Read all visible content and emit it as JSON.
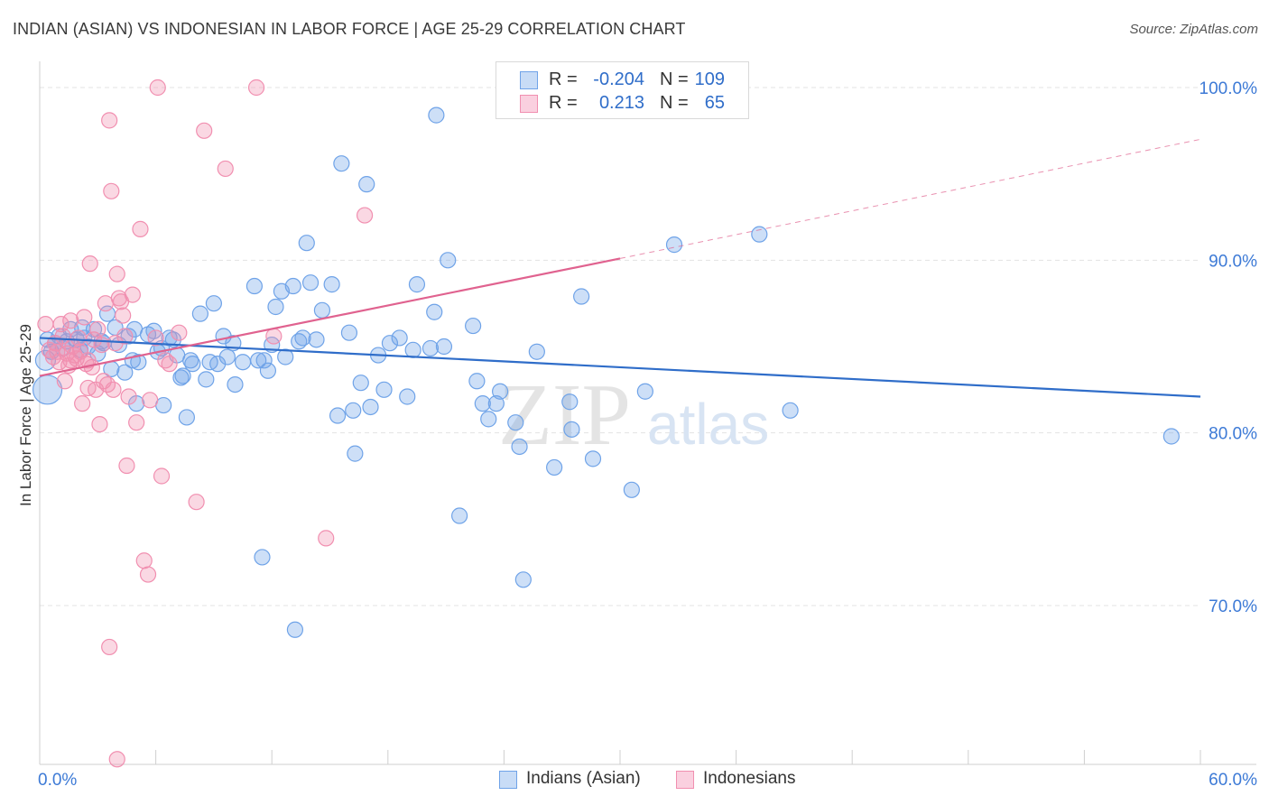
{
  "title": "INDIAN (ASIAN) VS INDONESIAN IN LABOR FORCE | AGE 25-29 CORRELATION CHART",
  "source": "Source: ZipAtlas.com",
  "watermark": {
    "zip": "ZIP",
    "atlas": "atlas"
  },
  "legend": {
    "rows": [
      {
        "r_label": "R =",
        "r_value": "-0.204",
        "n_label": "N =",
        "n_value": "109",
        "color": "#6fa3e8"
      },
      {
        "r_label": "R =",
        "r_value": "0.213",
        "n_label": "N =",
        "n_value": "65",
        "color": "#f18fb0"
      }
    ]
  },
  "bottom_legend": [
    {
      "label": "Indians (Asian)",
      "color": "#6fa3e8"
    },
    {
      "label": "Indonesians",
      "color": "#f18fb0"
    }
  ],
  "colors": {
    "blue": "#6fa3e8",
    "blue_line": "#2f6dc9",
    "pink": "#f18fb0",
    "pink_line": "#e0628f",
    "tick_text": "#3d7ad6",
    "grid": "#e3e3e3"
  },
  "chart_data": {
    "type": "scatter",
    "title": "INDIAN (ASIAN) VS INDONESIAN IN LABOR FORCE | AGE 25-29 CORRELATION CHART",
    "xlabel": "",
    "ylabel": "In Labor Force | Age 25-29",
    "xlim": [
      0,
      60
    ],
    "ylim": [
      61,
      102
    ],
    "x_tick_labels": [
      {
        "value": 0,
        "label": "0.0%"
      },
      {
        "value": 60,
        "label": "60.0%"
      }
    ],
    "y_tick_labels": [
      {
        "value": 100,
        "label": "100.0%"
      },
      {
        "value": 90,
        "label": "90.0%"
      },
      {
        "value": 80,
        "label": "80.0%"
      },
      {
        "value": 70,
        "label": "70.0%"
      }
    ],
    "series": [
      {
        "name": "Indians (Asian)",
        "R": -0.204,
        "N": 109,
        "trend": {
          "x": [
            0,
            60
          ],
          "y": [
            85.5,
            82.1
          ]
        },
        "points": [
          [
            0.4,
            85.4
          ],
          [
            0.6,
            84.7
          ],
          [
            0.8,
            85.2
          ],
          [
            1.0,
            85.6
          ],
          [
            1.2,
            84.9
          ],
          [
            1.4,
            85.3
          ],
          [
            1.6,
            86.0
          ],
          [
            1.9,
            85.4
          ],
          [
            2.1,
            84.8
          ],
          [
            2.3,
            85.5
          ],
          [
            2.5,
            85.0
          ],
          [
            2.8,
            86.0
          ],
          [
            3.0,
            84.6
          ],
          [
            3.3,
            85.2
          ],
          [
            3.5,
            86.9
          ],
          [
            3.7,
            83.7
          ],
          [
            3.9,
            86.1
          ],
          [
            4.1,
            85.1
          ],
          [
            4.4,
            83.5
          ],
          [
            4.6,
            85.6
          ],
          [
            4.8,
            84.2
          ],
          [
            5.0,
            81.7
          ],
          [
            5.1,
            84.1
          ],
          [
            5.6,
            85.7
          ],
          [
            5.9,
            85.9
          ],
          [
            6.1,
            84.7
          ],
          [
            6.3,
            84.9
          ],
          [
            6.4,
            81.6
          ],
          [
            6.7,
            85.5
          ],
          [
            6.9,
            85.4
          ],
          [
            7.1,
            84.5
          ],
          [
            7.3,
            83.2
          ],
          [
            7.4,
            83.3
          ],
          [
            7.6,
            80.9
          ],
          [
            7.8,
            84.2
          ],
          [
            7.9,
            84.0
          ],
          [
            8.3,
            86.9
          ],
          [
            8.6,
            83.1
          ],
          [
            8.8,
            84.1
          ],
          [
            9.0,
            87.5
          ],
          [
            9.2,
            84.0
          ],
          [
            9.5,
            85.6
          ],
          [
            9.7,
            84.4
          ],
          [
            10.0,
            85.2
          ],
          [
            10.1,
            82.8
          ],
          [
            10.5,
            84.1
          ],
          [
            11.1,
            88.5
          ],
          [
            11.3,
            84.2
          ],
          [
            11.6,
            84.2
          ],
          [
            11.8,
            83.6
          ],
          [
            12.0,
            85.1
          ],
          [
            12.2,
            87.3
          ],
          [
            12.5,
            88.2
          ],
          [
            12.7,
            84.4
          ],
          [
            13.1,
            88.5
          ],
          [
            13.4,
            85.3
          ],
          [
            13.6,
            85.5
          ],
          [
            13.8,
            91.0
          ],
          [
            14.0,
            88.7
          ],
          [
            14.3,
            85.4
          ],
          [
            14.6,
            87.1
          ],
          [
            15.1,
            88.6
          ],
          [
            15.4,
            81.0
          ],
          [
            15.6,
            95.6
          ],
          [
            16.0,
            85.8
          ],
          [
            16.2,
            81.3
          ],
          [
            16.3,
            78.8
          ],
          [
            16.6,
            82.9
          ],
          [
            16.9,
            94.4
          ],
          [
            17.1,
            81.5
          ],
          [
            17.5,
            84.5
          ],
          [
            17.8,
            82.5
          ],
          [
            18.1,
            85.2
          ],
          [
            18.6,
            85.5
          ],
          [
            19.0,
            82.1
          ],
          [
            19.3,
            84.8
          ],
          [
            19.5,
            88.6
          ],
          [
            20.2,
            84.9
          ],
          [
            20.4,
            87.0
          ],
          [
            20.9,
            85.0
          ],
          [
            20.5,
            98.4
          ],
          [
            21.1,
            90.0
          ],
          [
            21.7,
            75.2
          ],
          [
            22.4,
            86.2
          ],
          [
            22.6,
            83.0
          ],
          [
            22.9,
            81.7
          ],
          [
            23.2,
            80.8
          ],
          [
            23.6,
            81.7
          ],
          [
            23.8,
            82.4
          ],
          [
            24.6,
            80.6
          ],
          [
            24.8,
            79.2
          ],
          [
            25.0,
            71.5
          ],
          [
            25.7,
            84.7
          ],
          [
            26.6,
            78.0
          ],
          [
            27.4,
            81.8
          ],
          [
            27.5,
            80.2
          ],
          [
            28.0,
            87.9
          ],
          [
            28.6,
            78.5
          ],
          [
            30.6,
            76.7
          ],
          [
            31.3,
            82.4
          ],
          [
            32.8,
            90.9
          ],
          [
            37.2,
            91.5
          ],
          [
            38.8,
            81.3
          ],
          [
            58.5,
            79.8
          ],
          [
            11.5,
            72.8
          ],
          [
            13.2,
            68.6
          ],
          [
            4.9,
            86.0
          ],
          [
            2.2,
            86.1
          ],
          [
            3.2,
            85.3
          ]
        ]
      },
      {
        "name": "Indonesians",
        "R": 0.213,
        "N": 65,
        "trend": {
          "x": [
            0,
            30
          ],
          "y": [
            83.3,
            90.1
          ]
        },
        "trend_dashed": {
          "x": [
            30,
            60
          ],
          "y": [
            90.1,
            97.0
          ]
        },
        "points": [
          [
            0.3,
            86.3
          ],
          [
            0.5,
            84.8
          ],
          [
            0.7,
            84.4
          ],
          [
            0.8,
            85.2
          ],
          [
            1.0,
            84.1
          ],
          [
            1.1,
            86.3
          ],
          [
            1.2,
            85.6
          ],
          [
            1.4,
            84.6
          ],
          [
            1.5,
            83.9
          ],
          [
            1.6,
            84.2
          ],
          [
            1.7,
            85.0
          ],
          [
            1.8,
            84.5
          ],
          [
            1.9,
            84.3
          ],
          [
            2.0,
            85.5
          ],
          [
            2.1,
            84.7
          ],
          [
            2.2,
            81.7
          ],
          [
            2.3,
            86.7
          ],
          [
            2.4,
            84.0
          ],
          [
            2.5,
            82.6
          ],
          [
            2.6,
            89.8
          ],
          [
            2.7,
            83.8
          ],
          [
            2.8,
            85.4
          ],
          [
            2.9,
            82.5
          ],
          [
            3.0,
            86.0
          ],
          [
            3.1,
            80.5
          ],
          [
            3.2,
            85.1
          ],
          [
            3.3,
            83.0
          ],
          [
            3.4,
            87.5
          ],
          [
            3.5,
            82.8
          ],
          [
            3.6,
            98.1
          ],
          [
            3.7,
            94.0
          ],
          [
            3.8,
            82.5
          ],
          [
            3.9,
            85.2
          ],
          [
            4.0,
            89.2
          ],
          [
            4.1,
            87.8
          ],
          [
            4.2,
            87.6
          ],
          [
            4.3,
            86.8
          ],
          [
            4.4,
            85.6
          ],
          [
            4.5,
            78.1
          ],
          [
            4.6,
            82.1
          ],
          [
            4.8,
            88.0
          ],
          [
            5.0,
            80.6
          ],
          [
            5.2,
            91.8
          ],
          [
            5.4,
            72.6
          ],
          [
            5.6,
            71.8
          ],
          [
            5.7,
            81.9
          ],
          [
            6.0,
            85.5
          ],
          [
            6.3,
            77.5
          ],
          [
            6.5,
            84.2
          ],
          [
            6.7,
            84.0
          ],
          [
            7.2,
            85.8
          ],
          [
            8.1,
            76.0
          ],
          [
            8.5,
            97.5
          ],
          [
            9.6,
            95.3
          ],
          [
            11.2,
            100.0
          ],
          [
            12.1,
            85.6
          ],
          [
            6.1,
            100.0
          ],
          [
            3.6,
            67.6
          ],
          [
            16.8,
            92.6
          ],
          [
            14.8,
            73.9
          ],
          [
            4.0,
            61.1
          ],
          [
            1.6,
            86.5
          ],
          [
            2.5,
            84.2
          ],
          [
            1.3,
            83.0
          ],
          [
            0.9,
            84.7
          ]
        ]
      }
    ]
  }
}
